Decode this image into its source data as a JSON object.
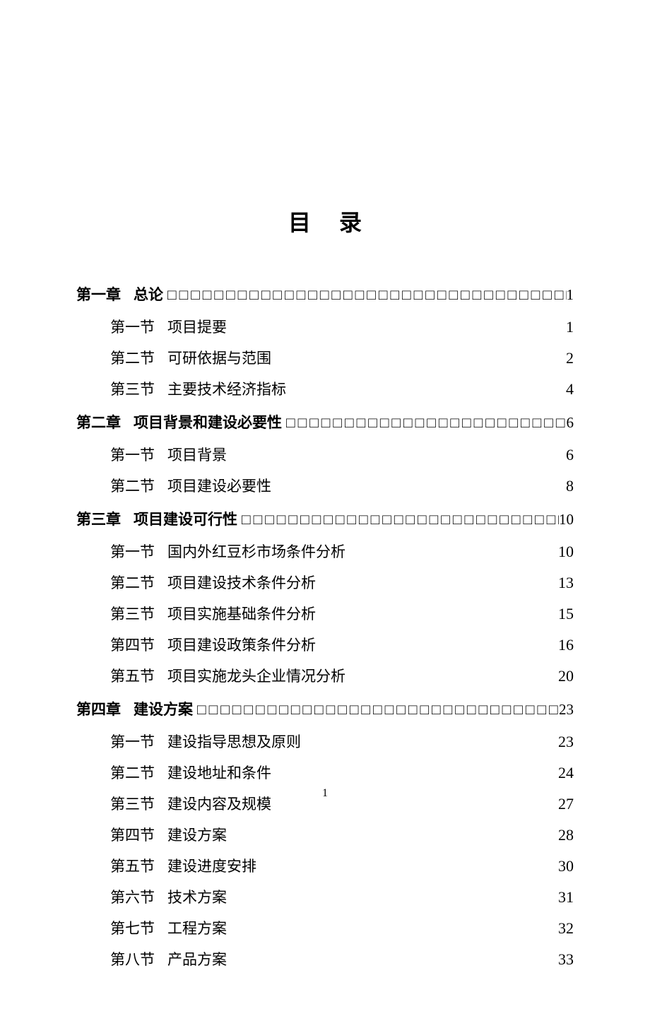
{
  "title": "目录",
  "page_number": "1",
  "dot_char": "□",
  "toc": [
    {
      "type": "chapter",
      "label": "第一章",
      "title": "总论",
      "page": "1",
      "sections": [
        {
          "label": "第一节",
          "title": "项目提要",
          "page": "1"
        },
        {
          "label": "第二节",
          "title": "可研依据与范围",
          "page": "2"
        },
        {
          "label": "第三节",
          "title": "主要技术经济指标",
          "page": "4"
        }
      ]
    },
    {
      "type": "chapter",
      "label": "第二章",
      "title": "项目背景和建设必要性",
      "page": "6",
      "sections": [
        {
          "label": "第一节",
          "title": "项目背景",
          "page": "6"
        },
        {
          "label": "第二节",
          "title": "项目建设必要性",
          "page": "8"
        }
      ]
    },
    {
      "type": "chapter",
      "label": "第三章",
      "title": "项目建设可行性",
      "page": "10",
      "sections": [
        {
          "label": "第一节",
          "title": "国内外红豆杉市场条件分析",
          "page": "10"
        },
        {
          "label": "第二节",
          "title": "项目建设技术条件分析",
          "page": "13"
        },
        {
          "label": "第三节",
          "title": "项目实施基础条件分析",
          "page": "15"
        },
        {
          "label": "第四节",
          "title": "项目建设政策条件分析",
          "page": "16"
        },
        {
          "label": "第五节",
          "title": "项目实施龙头企业情况分析",
          "page": "20"
        }
      ]
    },
    {
      "type": "chapter",
      "label": "第四章",
      "title": "建设方案",
      "page": "23",
      "sections": [
        {
          "label": "第一节",
          "title": "建设指导思想及原则",
          "page": "23"
        },
        {
          "label": "第二节",
          "title": "建设地址和条件",
          "page": "24"
        },
        {
          "label": "第三节",
          "title": "建设内容及规模",
          "page": "27"
        },
        {
          "label": "第四节",
          "title": "建设方案",
          "page": "28"
        },
        {
          "label": "第五节",
          "title": "建设进度安排",
          "page": "30"
        },
        {
          "label": "第六节",
          "title": "技术方案",
          "page": "31"
        },
        {
          "label": "第七节",
          "title": "工程方案",
          "page": "32"
        },
        {
          "label": "第八节",
          "title": "产品方案",
          "page": "33"
        }
      ]
    }
  ]
}
